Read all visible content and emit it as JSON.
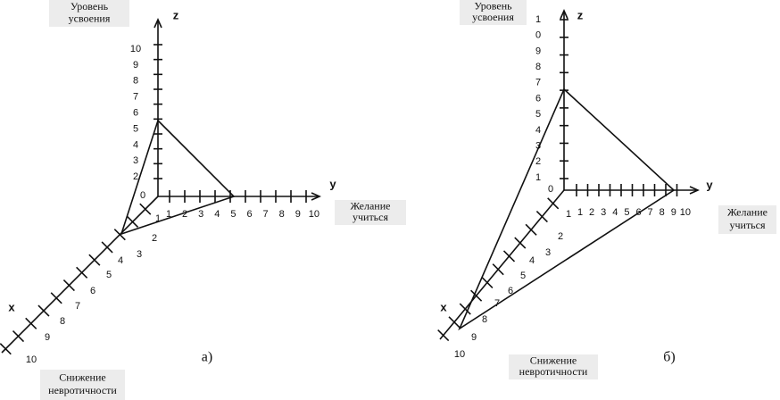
{
  "panels": [
    {
      "z_name": "z",
      "y_name": "y",
      "x_name": "x",
      "origin_label": "0",
      "z_labels": [
        "10",
        "9",
        "8",
        "7",
        "6",
        "5",
        "4",
        "3",
        "2"
      ],
      "y_labels": [
        "1",
        "2",
        "3",
        "4",
        "5",
        "6",
        "7",
        "8",
        "9",
        "10"
      ],
      "x_labels": [
        "1",
        "2",
        "3",
        "4",
        "5",
        "6",
        "7",
        "8",
        "9",
        "10"
      ],
      "z_title": [
        "Уровень",
        "усвоения"
      ],
      "y_title": [
        "Желание",
        "учиться"
      ],
      "x_title": [
        "Снижение",
        "невротичности"
      ],
      "caption": "а)"
    },
    {
      "z_name": "z",
      "y_name": "y",
      "x_name": "x",
      "origin_label": "0",
      "z_labels": [
        "1",
        "0",
        "9",
        "8",
        "7",
        "6",
        "5",
        "4",
        "3",
        "2",
        "1"
      ],
      "y_labels": [
        "1",
        "2",
        "3",
        "4",
        "5",
        "6",
        "7",
        "8",
        "9",
        "10"
      ],
      "x_labels": [
        "1",
        "2",
        "3",
        "4",
        "5",
        "6",
        "7",
        "8",
        "9",
        "10"
      ],
      "z_title": [
        "Уровень",
        "усвоения"
      ],
      "y_title": [
        "Желание",
        "учиться"
      ],
      "x_title": [
        "Снижение",
        "невротичности"
      ],
      "caption": "б)"
    }
  ]
}
